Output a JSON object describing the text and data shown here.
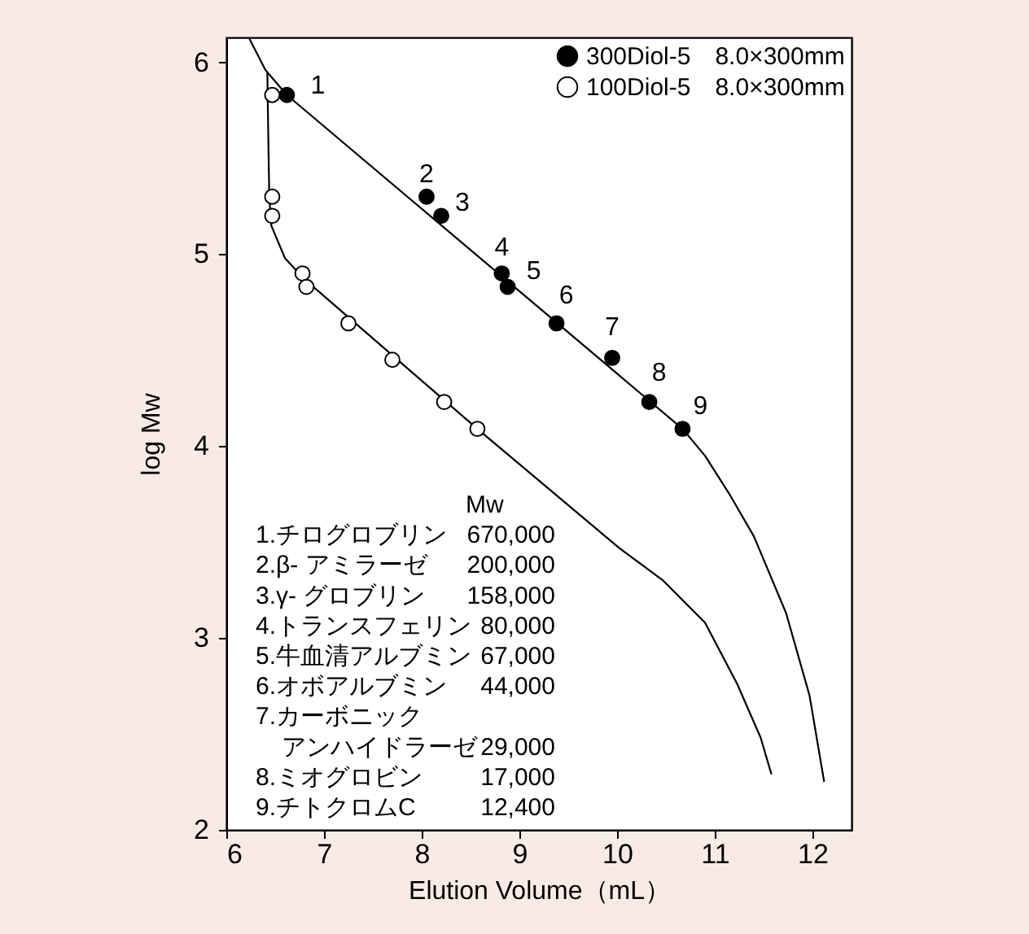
{
  "chart_data": {
    "type": "scatter",
    "xlabel": "Elution Volume（mL）",
    "ylabel": "log  Mw",
    "xlim": [
      6,
      12.4
    ],
    "xticks": [
      6,
      7,
      8,
      9,
      10,
      11,
      12
    ],
    "ylim": [
      2,
      6.13
    ],
    "yticks": [
      2,
      3,
      4,
      5,
      6
    ],
    "grid": false,
    "legend": "top right",
    "marker": "circle",
    "series": [
      {
        "name": "300Diol-5　8.0×300mm",
        "color": "#000000",
        "x": [
          6.62,
          8.05,
          8.2,
          8.82,
          8.88,
          9.38,
          9.95,
          10.33,
          10.67
        ],
        "values": [
          5.83,
          5.3,
          5.2,
          4.9,
          4.83,
          4.64,
          4.46,
          4.23,
          4.09
        ]
      },
      {
        "name": "100Diol-5　8.0×300mm",
        "color": "#ffffff",
        "x": [
          6.47,
          6.47,
          6.47,
          6.78,
          6.82,
          7.25,
          7.7,
          8.23,
          8.57
        ],
        "values": [
          5.83,
          5.3,
          5.2,
          4.9,
          4.83,
          4.64,
          4.45,
          4.23,
          4.09
        ]
      },
      {
        "type": "line",
        "marker": "none",
        "color": "#000000",
        "x": [
          6.23,
          6.4,
          6.62,
          10.67,
          10.9,
          11.15,
          11.4,
          11.73,
          11.97,
          12.12
        ],
        "values": [
          6.13,
          5.96,
          5.83,
          4.09,
          3.95,
          3.75,
          3.53,
          3.13,
          2.7,
          2.25
        ]
      },
      {
        "type": "line",
        "marker": "none",
        "color": "#000000",
        "x": [
          6.42,
          6.43,
          6.44,
          6.46,
          6.6,
          6.8,
          8.57,
          10.02,
          10.47,
          10.9,
          11.23,
          11.47,
          11.58
        ],
        "values": [
          5.95,
          5.6,
          5.3,
          5.15,
          4.98,
          4.87,
          4.09,
          3.47,
          3.3,
          3.08,
          2.76,
          2.48,
          2.29
        ]
      }
    ],
    "annotations": [
      "Mw",
      "1.チログロブリン",
      "670,000",
      "2.β- アミラーゼ",
      "200,000",
      "3.γ- グロブリン",
      "158,000",
      "4.トランスフェリン",
      "80,000",
      "5.牛血清アルブミン",
      "67,000",
      "6.オボアルブミン",
      "44,000",
      "7.カーボニック",
      "アンハイドラーゼ",
      "29,000",
      "8.ミオグロビン",
      "17,000",
      "9.チトクロムC",
      "12,400",
      {
        "text": "1",
        "x": 6.62,
        "y": 5.83
      },
      {
        "text": "2",
        "x": 8.05,
        "y": 5.3
      },
      {
        "text": "3",
        "x": 8.2,
        "y": 5.2
      },
      {
        "text": "4",
        "x": 8.82,
        "y": 4.9
      },
      {
        "text": "5",
        "x": 8.88,
        "y": 4.83
      },
      {
        "text": "6",
        "x": 9.38,
        "y": 4.64
      },
      {
        "text": "7",
        "x": 9.95,
        "y": 4.46
      },
      {
        "text": "8",
        "x": 10.33,
        "y": 4.23
      },
      {
        "text": "9",
        "x": 10.67,
        "y": 4.09
      }
    ]
  }
}
